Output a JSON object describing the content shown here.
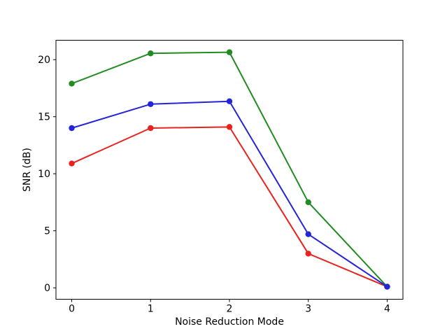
{
  "figure": {
    "background": "#ffffff",
    "title": ""
  },
  "chart_data": {
    "type": "line",
    "x": [
      0,
      1,
      2,
      3,
      4
    ],
    "series": [
      {
        "name": "red-series",
        "color": "#e8231d",
        "values": [
          10.9,
          14.0,
          14.1,
          3.0,
          0.1
        ]
      },
      {
        "name": "green-series",
        "color": "#228b22",
        "values": [
          17.9,
          20.55,
          20.65,
          7.5,
          0.1
        ]
      },
      {
        "name": "blue-series",
        "color": "#2424d8",
        "values": [
          14.0,
          16.1,
          16.35,
          4.7,
          0.1
        ]
      }
    ],
    "marker": "circle",
    "title": "",
    "xlabel": "Noise Reduction Mode",
    "ylabel": "SNR (dB)",
    "xticks": [
      0,
      1,
      2,
      3,
      4
    ],
    "yticks": [
      0,
      5,
      10,
      15,
      20
    ],
    "xlim": [
      -0.2,
      4.2
    ],
    "ylim": [
      -1.0,
      21.7
    ],
    "grid": false,
    "legend": null,
    "axis_color": "#000000"
  }
}
